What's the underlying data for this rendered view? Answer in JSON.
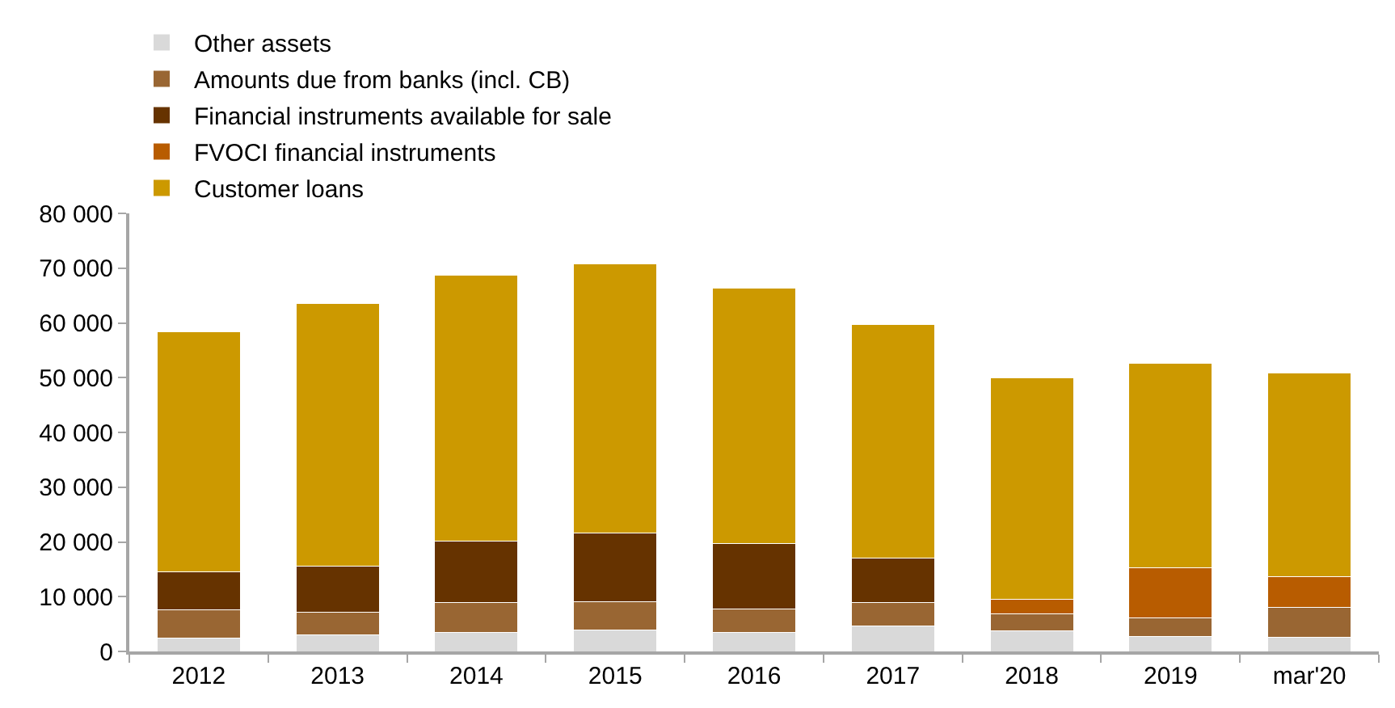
{
  "chart_data": {
    "type": "bar",
    "stacked": true,
    "legend": "top",
    "grid": false,
    "categories": [
      "2012",
      "2013",
      "2014",
      "2015",
      "2016",
      "2017",
      "2018",
      "2019",
      "mar'20"
    ],
    "series": [
      {
        "name": "Other assets",
        "color": "#d9d9d9",
        "values": [
          2400,
          3000,
          3500,
          3900,
          3400,
          4700,
          3700,
          2800,
          2600
        ]
      },
      {
        "name": "Amounts due from banks (incl. CB)",
        "color": "#996633",
        "values": [
          5200,
          4100,
          5400,
          5200,
          4400,
          4200,
          3100,
          3300,
          5400
        ]
      },
      {
        "name": "Financial instruments available for sale",
        "color": "#663300",
        "values": [
          7000,
          8400,
          11200,
          12500,
          11900,
          8100,
          null,
          null,
          null
        ]
      },
      {
        "name": "FVOCI financial instruments",
        "color": "#b85c00",
        "values": [
          null,
          null,
          null,
          null,
          null,
          null,
          2700,
          9200,
          5700
        ]
      },
      {
        "name": "Customer loans",
        "color": "#cc9900",
        "values": [
          43800,
          48100,
          48650,
          49200,
          46600,
          42700,
          40450,
          37300,
          37100
        ]
      }
    ],
    "ylim": [
      0,
      80000
    ],
    "yticks": [
      0,
      {
        "value": 10000,
        "label": "10 000"
      },
      {
        "value": 20000,
        "label": "20 000"
      },
      {
        "value": 30000,
        "label": "30 000"
      },
      {
        "value": 40000,
        "label": "40 000"
      },
      {
        "value": 50000,
        "label": "50 000"
      },
      {
        "value": 60000,
        "label": "60 000"
      },
      {
        "value": 70000,
        "label": "70 000"
      },
      {
        "value": 80000,
        "label": "80 000"
      }
    ]
  }
}
